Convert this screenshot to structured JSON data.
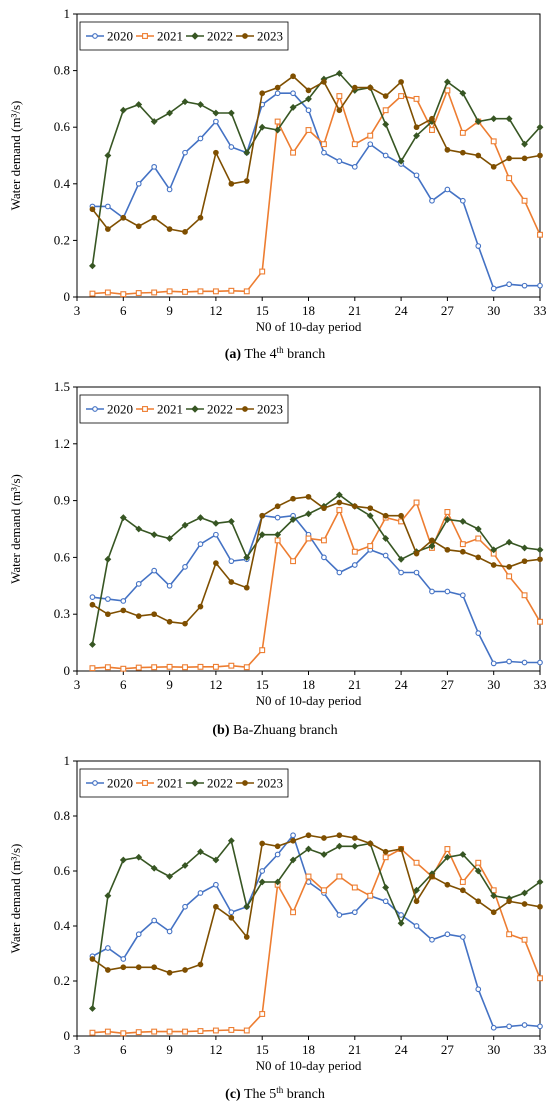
{
  "colors": {
    "2020": "#4472C4",
    "2021": "#ED7D31",
    "2022": "#375623",
    "2023": "#7F4F00"
  },
  "chart_data": [
    {
      "type": "line",
      "caption_label": "(a)",
      "caption_text_before_sup": "The 4",
      "caption_sup": "th",
      "caption_text_after_sup": " branch",
      "xlabel": "N0 of 10-day period",
      "ylabel": "Water demand (m³/s)",
      "xlim": [
        3,
        33
      ],
      "xticks": [
        3,
        6,
        9,
        12,
        15,
        18,
        21,
        24,
        27,
        30,
        33
      ],
      "ylim": [
        0,
        1
      ],
      "yticks": [
        "0",
        "0.2",
        "0.4",
        "0.6",
        "0.8",
        "1"
      ],
      "grid": false,
      "legend_position": "top-left",
      "x": [
        4,
        5,
        6,
        7,
        8,
        9,
        10,
        11,
        12,
        13,
        14,
        15,
        16,
        17,
        18,
        19,
        20,
        21,
        22,
        23,
        24,
        25,
        26,
        27,
        28,
        29,
        30,
        31,
        32,
        33
      ],
      "series": [
        {
          "name": "2020",
          "marker": "circle",
          "values": [
            0.32,
            0.32,
            0.28,
            0.4,
            0.46,
            0.38,
            0.51,
            0.56,
            0.62,
            0.53,
            0.51,
            0.68,
            0.72,
            0.72,
            0.66,
            0.51,
            0.48,
            0.46,
            0.54,
            0.5,
            0.47,
            0.43,
            0.34,
            0.38,
            0.34,
            0.18,
            0.03,
            0.045,
            0.04,
            0.04
          ]
        },
        {
          "name": "2021",
          "marker": "square",
          "values": [
            0.012,
            0.016,
            0.01,
            0.014,
            0.016,
            0.02,
            0.018,
            0.02,
            0.02,
            0.022,
            0.02,
            0.09,
            0.62,
            0.51,
            0.59,
            0.54,
            0.71,
            0.54,
            0.57,
            0.66,
            0.71,
            0.7,
            0.59,
            0.73,
            0.58,
            0.62,
            0.55,
            0.42,
            0.34,
            0.22
          ]
        },
        {
          "name": "2022",
          "marker": "diamond",
          "values": [
            0.11,
            0.5,
            0.66,
            0.68,
            0.62,
            0.65,
            0.69,
            0.68,
            0.65,
            0.65,
            0.51,
            0.6,
            0.59,
            0.67,
            0.7,
            0.77,
            0.79,
            0.73,
            0.74,
            0.61,
            0.48,
            0.57,
            0.62,
            0.76,
            0.72,
            0.62,
            0.63,
            0.63,
            0.54,
            0.6
          ]
        },
        {
          "name": "2023",
          "marker": "circle",
          "values": [
            0.31,
            0.24,
            0.28,
            0.25,
            0.28,
            0.24,
            0.23,
            0.28,
            0.51,
            0.4,
            0.41,
            0.72,
            0.74,
            0.78,
            0.73,
            0.76,
            0.66,
            0.74,
            0.74,
            0.71,
            0.76,
            0.6,
            0.63,
            0.52,
            0.51,
            0.5,
            0.46,
            0.49,
            0.49,
            0.5
          ]
        }
      ]
    },
    {
      "type": "line",
      "caption_label": "(b)",
      "caption_text_before_sup": "Ba-Zhuang branch",
      "caption_sup": "",
      "caption_text_after_sup": "",
      "xlabel": "N0 of 10-day period",
      "ylabel": "Water demand (m³/s)",
      "xlim": [
        3,
        33
      ],
      "xticks": [
        3,
        6,
        9,
        12,
        15,
        18,
        21,
        24,
        27,
        30,
        33
      ],
      "ylim": [
        0,
        1.5
      ],
      "yticks": [
        "0",
        "0.3",
        "0.6",
        "0.9",
        "1.2",
        "1.5"
      ],
      "grid": false,
      "legend_position": "top-left",
      "x": [
        4,
        5,
        6,
        7,
        8,
        9,
        10,
        11,
        12,
        13,
        14,
        15,
        16,
        17,
        18,
        19,
        20,
        21,
        22,
        23,
        24,
        25,
        26,
        27,
        28,
        29,
        30,
        31,
        32,
        33
      ],
      "series": [
        {
          "name": "2020",
          "marker": "circle",
          "values": [
            0.39,
            0.38,
            0.37,
            0.46,
            0.53,
            0.45,
            0.55,
            0.67,
            0.72,
            0.58,
            0.59,
            0.82,
            0.81,
            0.82,
            0.72,
            0.6,
            0.52,
            0.56,
            0.64,
            0.61,
            0.52,
            0.52,
            0.42,
            0.42,
            0.4,
            0.2,
            0.04,
            0.05,
            0.045,
            0.045
          ]
        },
        {
          "name": "2021",
          "marker": "square",
          "values": [
            0.015,
            0.02,
            0.012,
            0.018,
            0.02,
            0.022,
            0.02,
            0.022,
            0.022,
            0.028,
            0.02,
            0.11,
            0.69,
            0.58,
            0.7,
            0.69,
            0.85,
            0.63,
            0.66,
            0.81,
            0.79,
            0.89,
            0.65,
            0.84,
            0.67,
            0.7,
            0.62,
            0.5,
            0.4,
            0.26
          ]
        },
        {
          "name": "2022",
          "marker": "diamond",
          "values": [
            0.14,
            0.59,
            0.81,
            0.75,
            0.72,
            0.7,
            0.77,
            0.81,
            0.78,
            0.79,
            0.6,
            0.72,
            0.72,
            0.8,
            0.83,
            0.87,
            0.93,
            0.87,
            0.82,
            0.7,
            0.59,
            0.63,
            0.66,
            0.8,
            0.79,
            0.75,
            0.64,
            0.68,
            0.65,
            0.64
          ]
        },
        {
          "name": "2023",
          "marker": "circle",
          "values": [
            0.35,
            0.3,
            0.32,
            0.29,
            0.3,
            0.26,
            0.25,
            0.34,
            0.57,
            0.47,
            0.44,
            0.82,
            0.87,
            0.91,
            0.92,
            0.86,
            0.89,
            0.87,
            0.86,
            0.82,
            0.82,
            0.62,
            0.69,
            0.64,
            0.63,
            0.6,
            0.56,
            0.55,
            0.58,
            0.59
          ]
        }
      ]
    },
    {
      "type": "line",
      "caption_label": "(c)",
      "caption_text_before_sup": "The 5",
      "caption_sup": "th",
      "caption_text_after_sup": " branch",
      "xlabel": "N0 of 10-day period",
      "ylabel": "Water demand (m³/s)",
      "xlim": [
        3,
        33
      ],
      "xticks": [
        3,
        6,
        9,
        12,
        15,
        18,
        21,
        24,
        27,
        30,
        33
      ],
      "ylim": [
        0,
        1
      ],
      "yticks": [
        "0",
        "0.2",
        "0.4",
        "0.6",
        "0.8",
        "1"
      ],
      "grid": false,
      "legend_position": "top-left",
      "x": [
        4,
        5,
        6,
        7,
        8,
        9,
        10,
        11,
        12,
        13,
        14,
        15,
        16,
        17,
        18,
        19,
        20,
        21,
        22,
        23,
        24,
        25,
        26,
        27,
        28,
        29,
        30,
        31,
        32,
        33
      ],
      "series": [
        {
          "name": "2020",
          "marker": "circle",
          "values": [
            0.29,
            0.32,
            0.28,
            0.37,
            0.42,
            0.38,
            0.47,
            0.52,
            0.55,
            0.45,
            0.47,
            0.6,
            0.66,
            0.73,
            0.56,
            0.52,
            0.44,
            0.45,
            0.51,
            0.49,
            0.44,
            0.4,
            0.35,
            0.37,
            0.36,
            0.17,
            0.03,
            0.035,
            0.04,
            0.035
          ]
        },
        {
          "name": "2021",
          "marker": "square",
          "values": [
            0.012,
            0.016,
            0.01,
            0.014,
            0.016,
            0.016,
            0.016,
            0.018,
            0.02,
            0.022,
            0.02,
            0.08,
            0.55,
            0.45,
            0.58,
            0.53,
            0.58,
            0.54,
            0.51,
            0.65,
            0.68,
            0.63,
            0.58,
            0.68,
            0.56,
            0.63,
            0.53,
            0.37,
            0.35,
            0.21
          ]
        },
        {
          "name": "2022",
          "marker": "diamond",
          "values": [
            0.1,
            0.51,
            0.64,
            0.65,
            0.61,
            0.58,
            0.62,
            0.67,
            0.64,
            0.71,
            0.47,
            0.56,
            0.56,
            0.64,
            0.68,
            0.66,
            0.69,
            0.69,
            0.7,
            0.54,
            0.41,
            0.53,
            0.59,
            0.65,
            0.66,
            0.6,
            0.51,
            0.5,
            0.52,
            0.56
          ]
        },
        {
          "name": "2023",
          "marker": "circle",
          "values": [
            0.28,
            0.24,
            0.25,
            0.25,
            0.25,
            0.23,
            0.24,
            0.26,
            0.47,
            0.43,
            0.36,
            0.7,
            0.69,
            0.71,
            0.73,
            0.72,
            0.73,
            0.72,
            0.7,
            0.67,
            0.68,
            0.49,
            0.58,
            0.55,
            0.53,
            0.49,
            0.45,
            0.49,
            0.48,
            0.47
          ]
        }
      ]
    }
  ]
}
